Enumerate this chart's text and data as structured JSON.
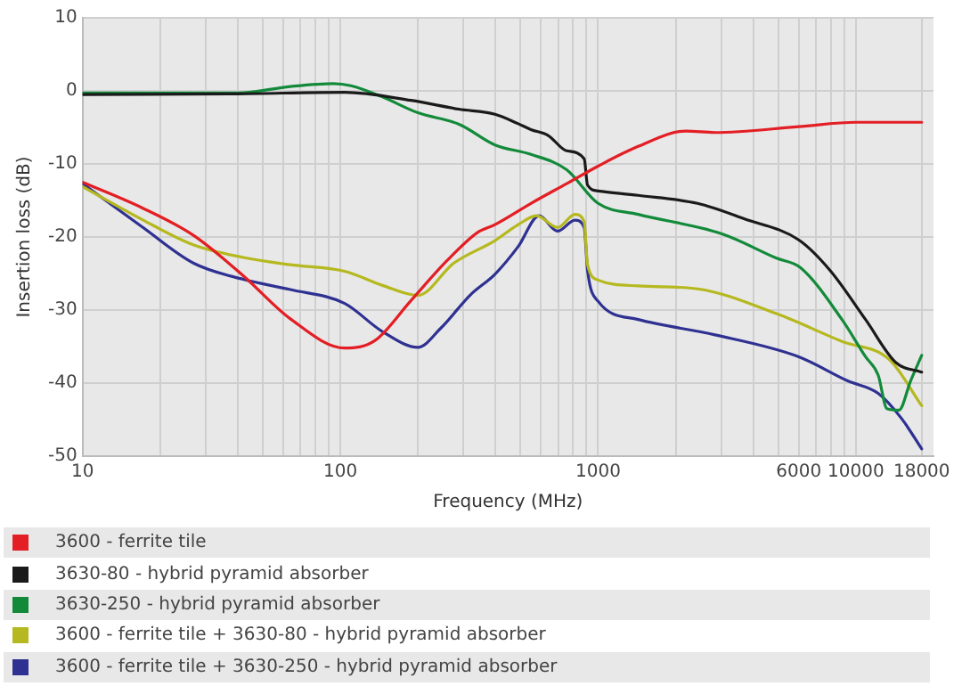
{
  "chart_data": {
    "type": "line",
    "xlabel": "Frequency (MHz)",
    "ylabel": "Insertion loss (dB)",
    "log": "x",
    "grid": true,
    "legend": "bottom",
    "marker": "none",
    "line_style": "solid",
    "xlim": [
      10,
      20000
    ],
    "ylim": [
      -50,
      10
    ],
    "xticks": [
      10,
      {
        "value": 20,
        "label": null
      },
      {
        "value": 30,
        "label": null
      },
      {
        "value": 40,
        "label": null
      },
      {
        "value": 50,
        "label": null
      },
      {
        "value": 60,
        "label": null
      },
      {
        "value": 70,
        "label": null
      },
      {
        "value": 80,
        "label": null
      },
      {
        "value": 90,
        "label": null
      },
      100,
      {
        "value": 200,
        "label": null
      },
      {
        "value": 300,
        "label": null
      },
      {
        "value": 400,
        "label": null
      },
      {
        "value": 500,
        "label": null
      },
      {
        "value": 600,
        "label": null
      },
      {
        "value": 700,
        "label": null
      },
      {
        "value": 800,
        "label": null
      },
      {
        "value": 900,
        "label": null
      },
      1000,
      {
        "value": 2000,
        "label": null
      },
      {
        "value": 3000,
        "label": null
      },
      {
        "value": 4000,
        "label": null
      },
      {
        "value": 5000,
        "label": null
      },
      6000,
      {
        "value": 7000,
        "label": null
      },
      {
        "value": 8000,
        "label": null
      },
      {
        "value": 9000,
        "label": null
      },
      10000,
      18000
    ],
    "yticks": [
      10,
      0,
      -10,
      -20,
      -30,
      -40,
      -50
    ],
    "series": [
      {
        "name": "3600 - ferrite tile",
        "color": "#e31e24",
        "x": [
          10,
          17,
          27,
          42,
          64,
          104,
          136,
          188,
          260,
          340,
          398,
          549,
          755,
          1000,
          1430,
          2190,
          2840,
          6000,
          10000,
          18000
        ],
        "values": [
          -12.5,
          -16,
          -19.8,
          -25.3,
          -31.2,
          -35.2,
          -34.2,
          -28.7,
          -23.2,
          -19.4,
          -18.3,
          -15.4,
          -12.7,
          -10.3,
          -7.6,
          -5.5,
          -5.7,
          -4.9,
          -4.3,
          -4.3
        ]
      },
      {
        "name": "3630-80 - hybrid pyramid absorber",
        "color": "#1a1a1a",
        "x": [
          10,
          40,
          104,
          188,
          288,
          398,
          490,
          549,
          640,
          755,
          883,
          910,
          1000,
          1430,
          2430,
          3680,
          6000,
          7950,
          10900,
          14300,
          18000
        ],
        "values": [
          -0.5,
          -0.4,
          -0.2,
          -1.3,
          -2.5,
          -3.2,
          -4.5,
          -5.3,
          -6.1,
          -8.2,
          -9.3,
          -12.9,
          -13.7,
          -14.3,
          -15.4,
          -17.5,
          -20.4,
          -24.6,
          -31.3,
          -37.2,
          -38.5
        ]
      },
      {
        "name": "3630-250 - hybrid pyramid absorber",
        "color": "#138a3a",
        "x": [
          10,
          40,
          64,
          94,
          110,
          145,
          200,
          290,
          398,
          549,
          755,
          1000,
          1430,
          3040,
          4920,
          6100,
          8830,
          10900,
          12200,
          13200,
          14700,
          16300,
          18000
        ],
        "values": [
          -0.3,
          -0.3,
          0.6,
          1.0,
          0.7,
          -0.8,
          -3.0,
          -4.6,
          -7.4,
          -8.7,
          -10.8,
          -15.4,
          -16.9,
          -19.6,
          -22.9,
          -24.2,
          -31.3,
          -36.4,
          -38.9,
          -43.5,
          -43.7,
          -39.7,
          -36.2
        ]
      },
      {
        "name": "3600 - ferrite tile + 3630-80 - hybrid pyramid absorber",
        "color": "#b5b81e",
        "x": [
          10,
          17,
          27,
          42,
          64,
          104,
          145,
          200,
          275,
          398,
          490,
          577,
          696,
          813,
          883,
          910,
          1000,
          1430,
          2430,
          4920,
          8830,
          13500,
          18000
        ],
        "values": [
          -13.1,
          -17.6,
          -21.1,
          -22.8,
          -23.8,
          -24.7,
          -26.6,
          -28.0,
          -23.6,
          -20.5,
          -18.3,
          -17.1,
          -18.7,
          -16.9,
          -17.9,
          -23.8,
          -25.9,
          -26.7,
          -27.1,
          -30.5,
          -34.3,
          -36.8,
          -43.1
        ]
      },
      {
        "name": "3600 - ferrite tile + 3630-250 - hybrid pyramid absorber",
        "color": "#2e3191",
        "x": [
          10,
          17,
          27,
          42,
          64,
          104,
          145,
          200,
          245,
          320,
          398,
          490,
          590,
          696,
          813,
          883,
          910,
          1000,
          1430,
          2840,
          6000,
          9300,
          12200,
          15000,
          18000
        ],
        "values": [
          -12.7,
          -18.6,
          -23.6,
          -25.8,
          -27.2,
          -29.1,
          -32.9,
          -35.1,
          -32.5,
          -27.9,
          -25.1,
          -21.3,
          -17.1,
          -19.2,
          -17.7,
          -18.7,
          -24.6,
          -28.8,
          -31.3,
          -33.4,
          -36.4,
          -39.7,
          -41.4,
          -44.8,
          -49.0
        ]
      }
    ]
  }
}
